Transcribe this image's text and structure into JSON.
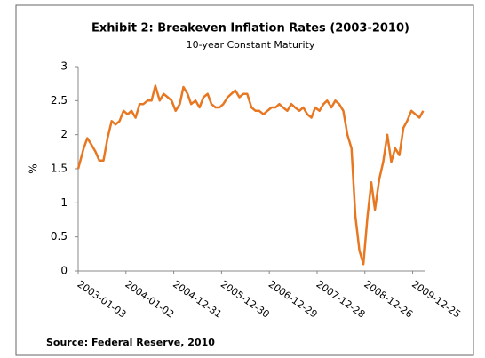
{
  "chart_data": {
    "type": "line",
    "title": "Exhibit 2: Breakeven Inflation Rates (2003-2010)",
    "subtitle": "10-year Constant Maturity",
    "y_label": "%",
    "source": "Source: Federal Reserve, 2010",
    "x": [
      "2003-01-03",
      "2003-02-14",
      "2003-03-14",
      "2003-04-15",
      "2003-05-15",
      "2003-06-13",
      "2003-07-15",
      "2003-08-15",
      "2003-09-15",
      "2003-10-15",
      "2003-11-14",
      "2003-12-15",
      "2004-01-15",
      "2004-02-13",
      "2004-03-15",
      "2004-04-15",
      "2004-05-14",
      "2004-06-15",
      "2004-07-15",
      "2004-08-13",
      "2004-09-15",
      "2004-10-15",
      "2004-11-15",
      "2004-12-15",
      "2005-01-14",
      "2005-02-15",
      "2005-03-15",
      "2005-04-15",
      "2005-05-13",
      "2005-06-15",
      "2005-07-15",
      "2005-08-15",
      "2005-09-15",
      "2005-10-14",
      "2005-11-15",
      "2005-12-15",
      "2006-01-13",
      "2006-02-15",
      "2006-03-15",
      "2006-04-14",
      "2006-05-15",
      "2006-06-15",
      "2006-07-14",
      "2006-08-15",
      "2006-09-15",
      "2006-10-13",
      "2006-11-15",
      "2006-12-15",
      "2007-01-15",
      "2007-02-15",
      "2007-03-15",
      "2007-04-13",
      "2007-05-15",
      "2007-06-15",
      "2007-07-13",
      "2007-08-15",
      "2007-09-14",
      "2007-10-15",
      "2007-11-15",
      "2007-12-14",
      "2008-01-15",
      "2008-02-15",
      "2008-03-14",
      "2008-04-15",
      "2008-05-15",
      "2008-06-13",
      "2008-07-15",
      "2008-08-15",
      "2008-09-15",
      "2008-10-15",
      "2008-11-14",
      "2008-12-15",
      "2009-01-15",
      "2009-02-13",
      "2009-03-13",
      "2009-04-15",
      "2009-05-15",
      "2009-06-15",
      "2009-07-15",
      "2009-08-14",
      "2009-09-15",
      "2009-10-15",
      "2009-11-13",
      "2009-12-15",
      "2010-01-15",
      "2010-02-15",
      "2010-03-15"
    ],
    "series": [
      {
        "name": "Breakeven Inflation Rate",
        "color": "#e87722",
        "values": [
          1.5,
          1.8,
          1.95,
          1.85,
          1.75,
          1.62,
          1.62,
          1.95,
          2.2,
          2.15,
          2.2,
          2.35,
          2.3,
          2.35,
          2.25,
          2.45,
          2.45,
          2.5,
          2.5,
          2.72,
          2.5,
          2.6,
          2.55,
          2.5,
          2.35,
          2.45,
          2.7,
          2.6,
          2.45,
          2.5,
          2.4,
          2.55,
          2.6,
          2.45,
          2.4,
          2.4,
          2.45,
          2.55,
          2.6,
          2.65,
          2.55,
          2.6,
          2.6,
          2.4,
          2.35,
          2.35,
          2.3,
          2.35,
          2.4,
          2.4,
          2.45,
          2.4,
          2.35,
          2.45,
          2.4,
          2.35,
          2.4,
          2.3,
          2.25,
          2.4,
          2.35,
          2.45,
          2.5,
          2.4,
          2.5,
          2.45,
          2.35,
          2.0,
          1.8,
          0.8,
          0.3,
          0.1,
          0.8,
          1.3,
          0.9,
          1.35,
          1.6,
          2.0,
          1.6,
          1.8,
          1.7,
          2.1,
          2.2,
          2.35,
          2.3,
          2.25,
          2.35
        ]
      }
    ],
    "xlim": [
      "2003-01-03",
      "2010-03-26"
    ],
    "xticks": [
      "2003-01-03",
      "2004-01-02",
      "2004-12-31",
      "2005-12-30",
      "2006-12-29",
      "2007-12-28",
      "2008-12-26",
      "2009-12-25"
    ],
    "ylim": [
      0,
      3
    ],
    "yticks": [
      0,
      0.5,
      1,
      1.5,
      2,
      2.5,
      3
    ],
    "grid": false
  }
}
